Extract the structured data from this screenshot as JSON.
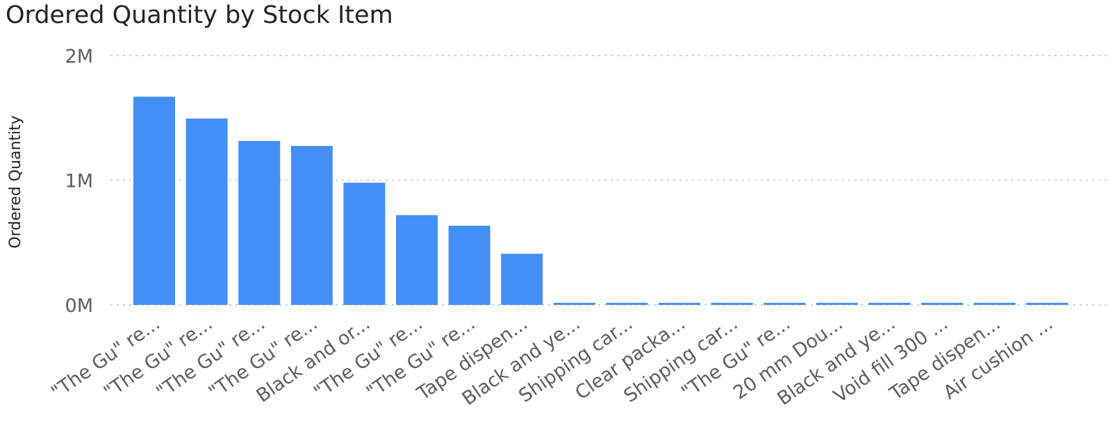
{
  "chart_data": {
    "type": "bar",
    "title": "Ordered Quantity by Stock Item",
    "xlabel": "",
    "ylabel": "Ordered Quantity",
    "categories": [
      "\"The Gu\" re...",
      "\"The Gu\" re...",
      "\"The Gu\" re...",
      "\"The Gu\" re...",
      "Black and or...",
      "\"The Gu\" re...",
      "\"The Gu\" re...",
      "Tape dispen...",
      "Black and ye...",
      "Shipping car...",
      "Clear packa...",
      "Shipping car...",
      "\"The Gu\" re...",
      "20 mm Dou...",
      "Black and ye...",
      "Void fill 300 ...",
      "Tape dispen...",
      "Air cushion ..."
    ],
    "values": [
      1670000,
      1495000,
      1315000,
      1275000,
      980000,
      720000,
      635000,
      410000,
      15000,
      15000,
      15000,
      15000,
      15000,
      15000,
      15000,
      15000,
      15000,
      15000
    ],
    "ylim": [
      0,
      2000000
    ],
    "yticks": [
      {
        "value": 0,
        "label": "0M"
      },
      {
        "value": 1000000,
        "label": "1M"
      },
      {
        "value": 2000000,
        "label": "2M"
      }
    ],
    "bar_color": "#448ff6",
    "grid": true,
    "legend": "none"
  }
}
